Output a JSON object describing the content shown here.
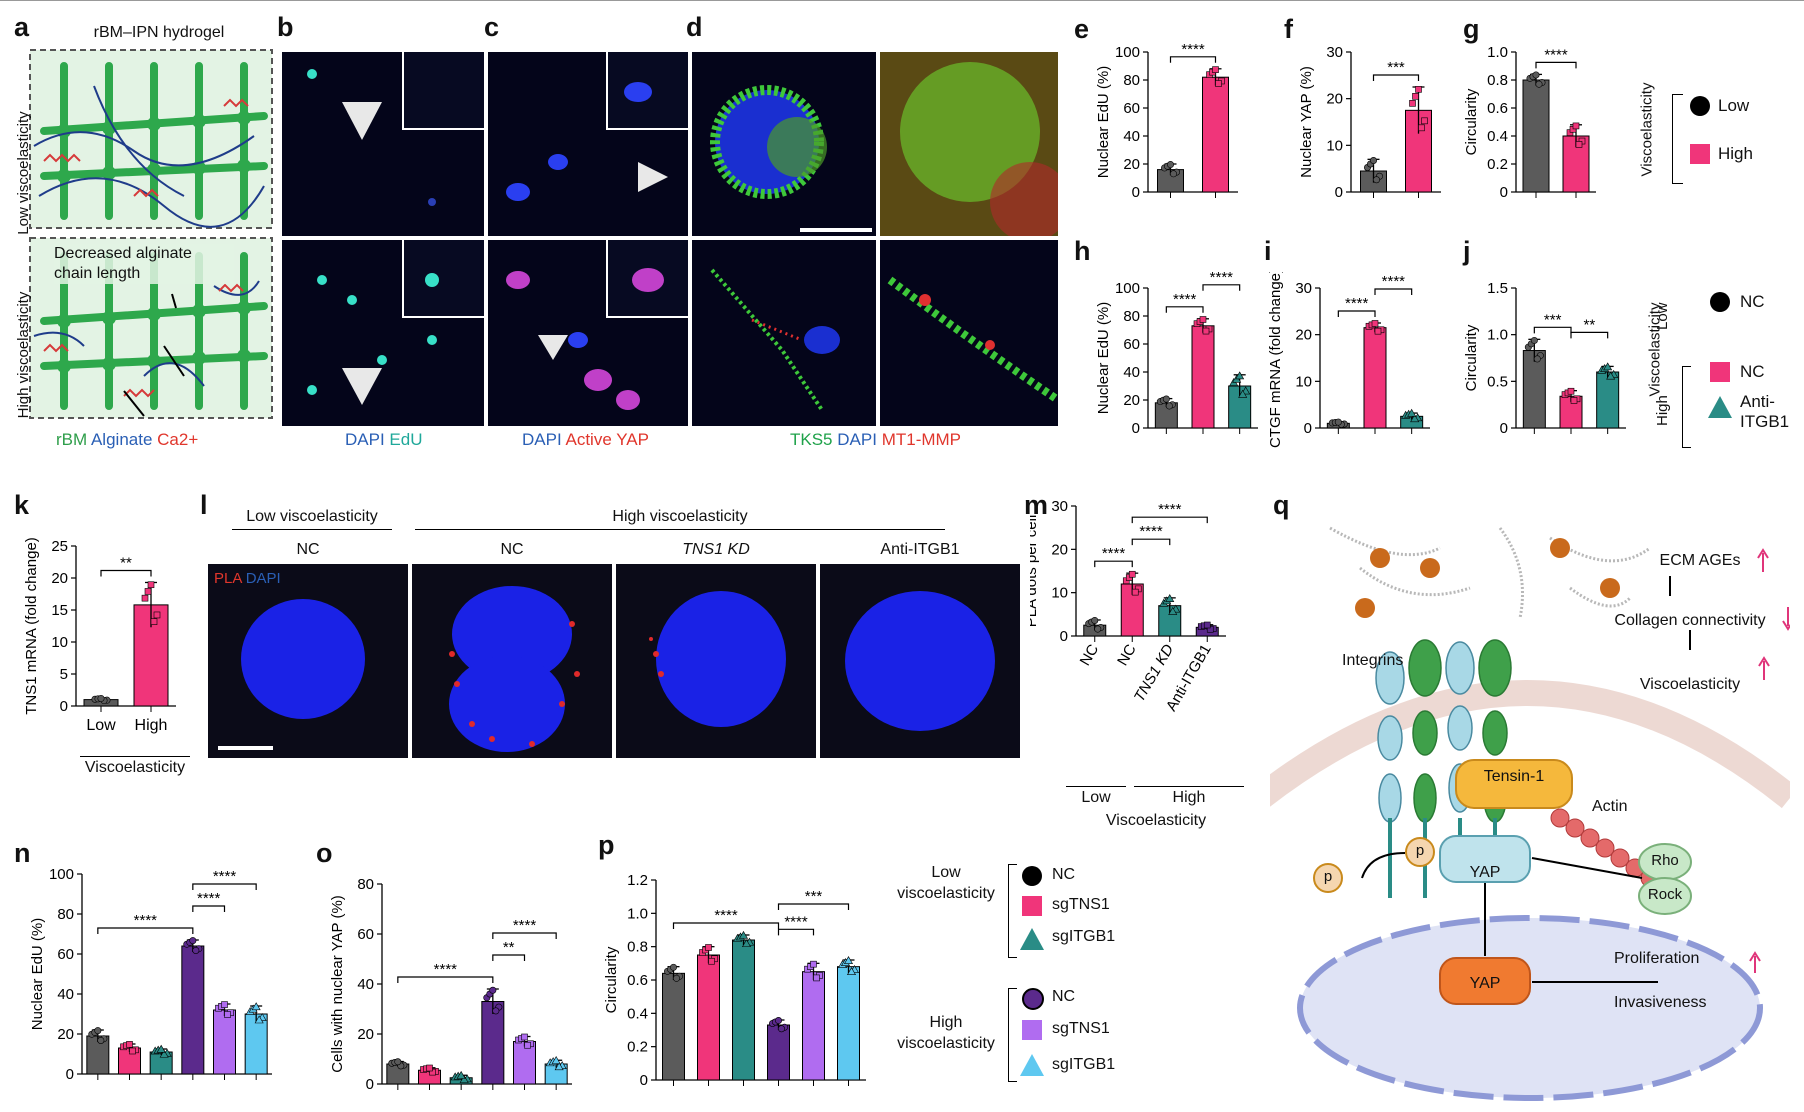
{
  "panel_letters": [
    "a",
    "b",
    "c",
    "d",
    "e",
    "f",
    "g",
    "h",
    "i",
    "j",
    "k",
    "l",
    "m",
    "n",
    "o",
    "p",
    "q"
  ],
  "a": {
    "title": "rBM–IPN hydrogel",
    "low": "Low viscoelasticity",
    "high": "High viscoelasticity",
    "annotation": "Decreased alginate chain length",
    "legend": [
      "rBM",
      "Alginate",
      "Ca2+"
    ],
    "legend_colors": [
      "#2e9e4a",
      "#2a5fb5",
      "#e0362c"
    ]
  },
  "b": {
    "caption": [
      "DAPI",
      "EdU"
    ],
    "caption_colors": [
      "#2a5fb5",
      "#1fa89a"
    ]
  },
  "c": {
    "caption": [
      "DAPI",
      "Active YAP"
    ],
    "caption_colors": [
      "#2a5fb5",
      "#e0362c"
    ]
  },
  "d": {
    "caption": [
      "TKS5",
      "DAPI",
      "MT1-MMP"
    ],
    "caption_colors": [
      "#1fa24a",
      "#2a5fb5",
      "#e0362c"
    ]
  },
  "legend_g": {
    "title": "Viscoelasticity",
    "items": [
      "Low",
      "High"
    ]
  },
  "legend_j": {
    "title": "Viscoelasticity",
    "low": "Low",
    "high": "High",
    "items": [
      "NC",
      "NC",
      "Anti-ITGB1"
    ]
  },
  "k_xgroup": "Viscoelasticity",
  "l": {
    "low_header": "Low viscoelasticity",
    "high_header": "High viscoelasticity",
    "columns": [
      "NC",
      "NC",
      "TNS1 KD",
      "Anti-ITGB1"
    ],
    "overlay": [
      "PLA",
      "DAPI"
    ]
  },
  "m_groups": {
    "low": "Low",
    "high": "High",
    "title": "Viscoelasticity"
  },
  "legend_np": {
    "low_title": "Low viscoelasticity",
    "high_title": "High viscoelasticity",
    "items": [
      "NC",
      "sgTNS1",
      "sgITGB1"
    ]
  },
  "q": {
    "integrins": "Integrins",
    "tensin": "Tensin-1",
    "actin": "Actin",
    "yap": "YAP",
    "rho": "Rho",
    "rock": "Rock",
    "p": "p",
    "ecm": "ECM AGEs",
    "collagen": "Collagen connectivity",
    "visco": "Viscoelasticity",
    "proliferation": "Proliferation",
    "invasiveness": "Invasiveness"
  },
  "colors": {
    "dark_grey": "#5b5b5b",
    "pink": "#f0357a",
    "teal": "#2a8c86",
    "purple": "#5b2a8c",
    "lilac": "#b06cf0",
    "sky": "#5ec8f0"
  },
  "chart_data": [
    {
      "panel": "e",
      "type": "bar",
      "ylabel": "Nuclear EdU (%)",
      "ylim": [
        0,
        100
      ],
      "yticks": [
        0,
        20,
        40,
        60,
        80,
        100
      ],
      "categories": [
        "Low",
        "High"
      ],
      "values": [
        16,
        82
      ],
      "errors": [
        4,
        6
      ],
      "significance": [
        "****"
      ]
    },
    {
      "panel": "f",
      "type": "bar",
      "ylabel": "Nuclear YAP (%)",
      "ylim": [
        0,
        30
      ],
      "yticks": [
        0,
        10,
        20,
        30
      ],
      "categories": [
        "Low",
        "High"
      ],
      "values": [
        4.5,
        17.5
      ],
      "errors": [
        2.5,
        5
      ],
      "significance": [
        "***"
      ]
    },
    {
      "panel": "g",
      "type": "bar",
      "ylabel": "Circularity",
      "ylim": [
        0,
        1.0
      ],
      "yticks": [
        0,
        0.2,
        0.4,
        0.6,
        0.8,
        1.0
      ],
      "categories": [
        "Low",
        "High"
      ],
      "values": [
        0.8,
        0.4
      ],
      "errors": [
        0.04,
        0.08
      ],
      "significance": [
        "****"
      ]
    },
    {
      "panel": "h",
      "type": "bar",
      "ylabel": "Nuclear EdU (%)",
      "ylim": [
        0,
        100
      ],
      "yticks": [
        0,
        20,
        40,
        60,
        80,
        100
      ],
      "categories": [
        "Low NC",
        "High NC",
        "High Anti-ITGB1"
      ],
      "values": [
        18,
        73,
        30
      ],
      "errors": [
        3,
        5,
        8
      ],
      "significance": [
        "****",
        "****"
      ]
    },
    {
      "panel": "i",
      "type": "bar",
      "ylabel": "CTGF mRNA (fold change)",
      "ylim": [
        0,
        30
      ],
      "yticks": [
        0,
        10,
        20,
        30
      ],
      "categories": [
        "Low NC",
        "High NC",
        "High Anti-ITGB1"
      ],
      "values": [
        1,
        21.5,
        2.5
      ],
      "errors": [
        0.3,
        1,
        0.7
      ],
      "significance": [
        "****",
        "****"
      ]
    },
    {
      "panel": "j",
      "type": "bar",
      "ylabel": "Circularity",
      "ylim": [
        0,
        1.5
      ],
      "yticks": [
        0,
        0.5,
        1.0,
        1.5
      ],
      "categories": [
        "Low NC",
        "High NC",
        "High Anti-ITGB1"
      ],
      "values": [
        0.83,
        0.34,
        0.6
      ],
      "errors": [
        0.12,
        0.06,
        0.06
      ],
      "significance": [
        "***",
        "**"
      ]
    },
    {
      "panel": "k",
      "type": "bar",
      "ylabel": "TNS1 mRNA (fold change)",
      "ylim": [
        0,
        25
      ],
      "yticks": [
        0,
        5,
        10,
        15,
        20,
        25
      ],
      "categories": [
        "Low",
        "High"
      ],
      "values": [
        1,
        15.8
      ],
      "errors": [
        0.2,
        3.5
      ],
      "significance": [
        "**"
      ]
    },
    {
      "panel": "m",
      "type": "bar",
      "ylabel": "PLA dots per cell",
      "ylim": [
        0,
        30
      ],
      "yticks": [
        0,
        10,
        20,
        30
      ],
      "categories": [
        "NC",
        "NC",
        "TNS1 KD",
        "Anti-ITGB1"
      ],
      "values": [
        2.5,
        12,
        7,
        2
      ],
      "errors": [
        1.2,
        2.5,
        1.8,
        0.6
      ],
      "significance": [
        "****",
        "****",
        "****"
      ]
    },
    {
      "panel": "n",
      "type": "bar",
      "ylabel": "Nuclear EdU (%)",
      "ylim": [
        0,
        100
      ],
      "yticks": [
        0,
        20,
        40,
        60,
        80,
        100
      ],
      "categories": [
        "NC",
        "sgTNS1",
        "sgITGB1",
        "NC",
        "sgTNS1",
        "sgITGB1"
      ],
      "values": [
        19,
        13,
        11,
        64,
        32,
        30
      ],
      "errors": [
        3,
        2,
        1.5,
        3,
        3,
        4
      ],
      "significance": [
        "****",
        "****",
        "****"
      ]
    },
    {
      "panel": "o",
      "type": "bar",
      "ylabel": "Cells with nuclear YAP (%)",
      "ylim": [
        0,
        80
      ],
      "yticks": [
        0,
        20,
        40,
        60,
        80
      ],
      "categories": [
        "NC",
        "sgTNS1",
        "sgITGB1",
        "NC",
        "sgTNS1",
        "sgITGB1"
      ],
      "values": [
        8,
        5.5,
        2.5,
        33,
        17,
        8
      ],
      "errors": [
        1,
        1,
        1,
        5,
        2,
        1.5
      ],
      "significance": [
        "****",
        "**",
        "****"
      ]
    },
    {
      "panel": "p",
      "type": "bar",
      "ylabel": "Circularity",
      "ylim": [
        0,
        1.2
      ],
      "yticks": [
        0,
        0.2,
        0.4,
        0.6,
        0.8,
        1.0,
        1.2
      ],
      "categories": [
        "NC",
        "sgTNS1",
        "sgITGB1",
        "NC",
        "sgTNS1",
        "sgITGB1"
      ],
      "values": [
        0.64,
        0.75,
        0.84,
        0.33,
        0.65,
        0.68
      ],
      "errors": [
        0.04,
        0.05,
        0.03,
        0.03,
        0.05,
        0.04
      ],
      "significance": [
        "****",
        "****",
        "***"
      ]
    }
  ]
}
